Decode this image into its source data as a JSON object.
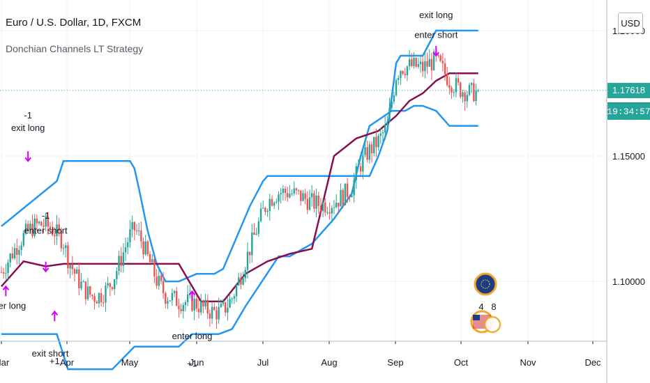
{
  "header": {
    "title": "Euro / U.S. Dollar, 1D, FXCM",
    "indicator": "Donchian Channels LT Strategy",
    "currency_button": "USD"
  },
  "price_axis": {
    "current_price": "1.17618",
    "countdown": "19:34:57"
  },
  "events": {
    "markers": [
      {
        "label": "4"
      },
      {
        "label": "8"
      }
    ]
  },
  "colors": {
    "upper_band": "#2196f3",
    "lower_band": "#2196f3",
    "basis": "#880e4f",
    "up_candle": "#26a69a",
    "down_candle": "#ef5350",
    "signal": "#d500f9",
    "price_line": "#26a69a"
  },
  "chart_data": {
    "type": "candlestick",
    "title": "Euro / U.S. Dollar, 1D, FXCM",
    "xlabel": "",
    "ylabel": "",
    "ylim": [
      1.0595,
      1.2122
    ],
    "x_tick_labels": [
      "Mar",
      "Apr",
      "May",
      "Jun",
      "Jul",
      "Aug",
      "Sep",
      "Oct",
      "Nov",
      "Dec"
    ],
    "y_tick_labels": [
      "1.20000",
      "1.15000",
      "1.10000"
    ],
    "y_tick_values": [
      1.2,
      1.15,
      1.1
    ],
    "last_price": 1.17618,
    "series": [
      {
        "name": "Donchian upper",
        "x": [
          0,
          25,
          28,
          35,
          40,
          44,
          46,
          58,
          60,
          62,
          66,
          70,
          74,
          80,
          88,
          96,
          100,
          112,
          118,
          120,
          130,
          140,
          150,
          156,
          160,
          166,
          170,
          174,
          178,
          180,
          184,
          186,
          190,
          196,
          202,
          208,
          215
        ],
        "y": [
          1.122,
          1.14,
          1.148,
          1.148,
          1.148,
          1.148,
          1.148,
          1.148,
          1.145,
          1.137,
          1.12,
          1.107,
          1.1,
          1.1,
          1.103,
          1.103,
          1.105,
          1.13,
          1.14,
          1.142,
          1.142,
          1.142,
          1.142,
          1.142,
          1.142,
          1.142,
          1.15,
          1.16,
          1.187,
          1.19,
          1.19,
          1.19,
          1.19,
          1.2,
          1.2,
          1.2,
          1.2
        ]
      },
      {
        "name": "Donchian lower",
        "x": [
          0,
          5,
          10,
          18,
          25,
          30,
          34,
          50,
          60,
          70,
          80,
          86,
          92,
          98,
          104,
          110,
          125,
          130,
          140,
          150,
          158,
          162,
          166,
          176,
          182,
          186,
          190,
          196,
          202,
          208,
          210,
          215
        ],
        "y": [
          1.079,
          1.079,
          1.079,
          1.079,
          1.079,
          1.065,
          1.065,
          1.065,
          1.074,
          1.074,
          1.074,
          1.079,
          1.079,
          1.079,
          1.081,
          1.09,
          1.11,
          1.11,
          1.115,
          1.125,
          1.135,
          1.15,
          1.162,
          1.168,
          1.168,
          1.17,
          1.17,
          1.168,
          1.162,
          1.162,
          1.162,
          1.162
        ]
      },
      {
        "name": "Donchian basis",
        "x": [
          0,
          10,
          20,
          28,
          32,
          40,
          50,
          60,
          70,
          80,
          90,
          100,
          110,
          120,
          130,
          140,
          150,
          160,
          170,
          178,
          184,
          190,
          196,
          202,
          208,
          215
        ],
        "y": [
          1.098,
          1.108,
          1.106,
          1.107,
          1.107,
          1.107,
          1.107,
          1.107,
          1.107,
          1.107,
          1.092,
          1.092,
          1.103,
          1.108,
          1.111,
          1.113,
          1.15,
          1.157,
          1.16,
          1.166,
          1.172,
          1.175,
          1.18,
          1.183,
          1.183,
          1.183
        ]
      }
    ],
    "signals": [
      {
        "label": "enter long",
        "x": 2,
        "price": 1.089
      },
      {
        "label": "-1",
        "x": 12,
        "price": 1.165
      },
      {
        "label": "exit long",
        "x": 12,
        "price": 1.16
      },
      {
        "label": "-1",
        "x": 20,
        "price": 1.125
      },
      {
        "label": "enter short",
        "x": 20,
        "price": 1.119
      },
      {
        "label": "exit short",
        "x": 22,
        "price": 1.07
      },
      {
        "label": "+1",
        "x": 24,
        "price": 1.067
      },
      {
        "label": "enter long",
        "x": 86,
        "price": 1.077
      },
      {
        "label": "+1",
        "x": 86,
        "price": 1.066
      },
      {
        "label": "exit long",
        "x": 196,
        "price": 1.205
      },
      {
        "label": "enter short",
        "x": 196,
        "price": 1.197
      }
    ]
  }
}
